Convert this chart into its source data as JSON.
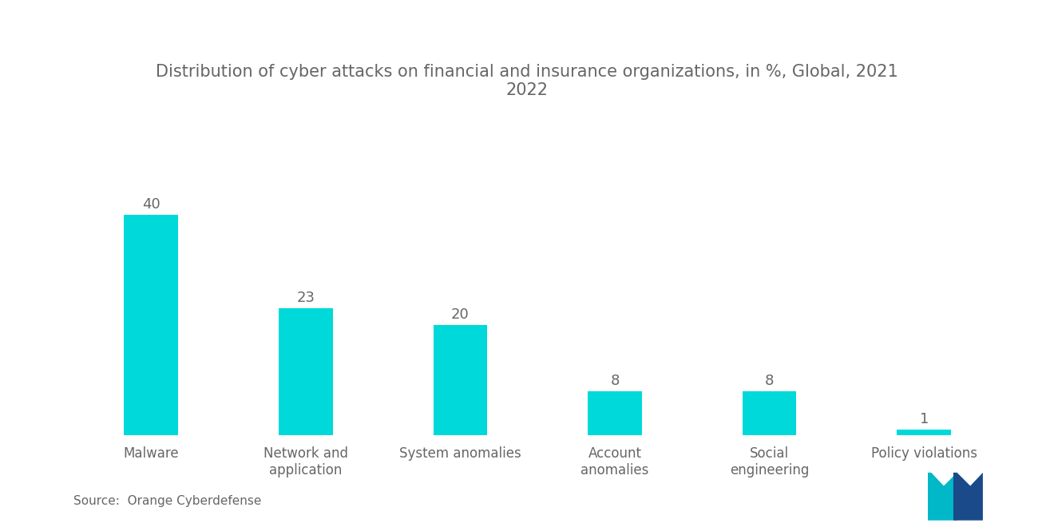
{
  "title": "Distribution of cyber attacks on financial and insurance organizations, in %, Global, 2021\n2022",
  "categories": [
    "Malware",
    "Network and\napplication",
    "System anomalies",
    "Account\nanomalies",
    "Social\nengineering",
    "Policy violations"
  ],
  "values": [
    40,
    23,
    20,
    8,
    8,
    1
  ],
  "bar_color": "#00D9D9",
  "title_color": "#666666",
  "label_color": "#666666",
  "value_color": "#666666",
  "background_color": "#ffffff",
  "source_text": "Source:  Orange Cyberdefense",
  "title_fontsize": 15,
  "value_fontsize": 13,
  "label_fontsize": 12,
  "source_fontsize": 11,
  "ylim": [
    0,
    50
  ],
  "bar_width": 0.35,
  "logo_teal": "#00B8C8",
  "logo_blue": "#1A4A8A"
}
